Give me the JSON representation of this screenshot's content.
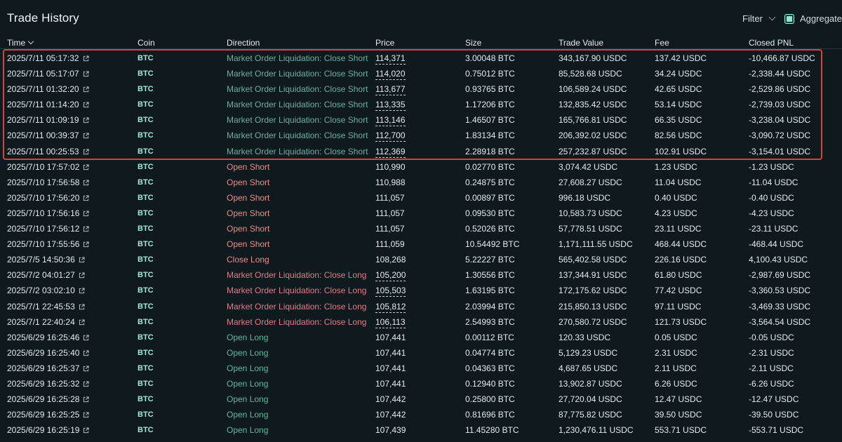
{
  "header": {
    "title": "Trade History",
    "filter_label": "Filter",
    "aggregate_label": "Aggregate"
  },
  "columns": [
    "Time",
    "Coin",
    "Direction",
    "Price",
    "Size",
    "Trade Value",
    "Fee",
    "Closed PNL"
  ],
  "rows": [
    {
      "time": "2025/7/11 05:17:32",
      "coin": "BTC",
      "direction": "Market Order Liquidation: Close Short",
      "kind": "liq-short",
      "price": "114,371",
      "underline": true,
      "size": "3.00048 BTC",
      "value": "343,167.90 USDC",
      "fee": "137.42 USDC",
      "pnl": "-10,466.87 USDC"
    },
    {
      "time": "2025/7/11 05:17:07",
      "coin": "BTC",
      "direction": "Market Order Liquidation: Close Short",
      "kind": "liq-short",
      "price": "114,020",
      "underline": true,
      "size": "0.75012 BTC",
      "value": "85,528.68 USDC",
      "fee": "34.24 USDC",
      "pnl": "-2,338.44 USDC"
    },
    {
      "time": "2025/7/11 01:32:20",
      "coin": "BTC",
      "direction": "Market Order Liquidation: Close Short",
      "kind": "liq-short",
      "price": "113,677",
      "underline": true,
      "size": "0.93765 BTC",
      "value": "106,589.24 USDC",
      "fee": "42.65 USDC",
      "pnl": "-2,529.86 USDC"
    },
    {
      "time": "2025/7/11 01:14:20",
      "coin": "BTC",
      "direction": "Market Order Liquidation: Close Short",
      "kind": "liq-short",
      "price": "113,335",
      "underline": true,
      "size": "1.17206 BTC",
      "value": "132,835.42 USDC",
      "fee": "53.14 USDC",
      "pnl": "-2,739.03 USDC"
    },
    {
      "time": "2025/7/11 01:09:19",
      "coin": "BTC",
      "direction": "Market Order Liquidation: Close Short",
      "kind": "liq-short",
      "price": "113,146",
      "underline": true,
      "size": "1.46507 BTC",
      "value": "165,766.81 USDC",
      "fee": "66.35 USDC",
      "pnl": "-3,238.04 USDC"
    },
    {
      "time": "2025/7/11 00:39:37",
      "coin": "BTC",
      "direction": "Market Order Liquidation: Close Short",
      "kind": "liq-short",
      "price": "112,700",
      "underline": true,
      "size": "1.83134 BTC",
      "value": "206,392.02 USDC",
      "fee": "82.56 USDC",
      "pnl": "-3,090.72 USDC"
    },
    {
      "time": "2025/7/11 00:25:53",
      "coin": "BTC",
      "direction": "Market Order Liquidation: Close Short",
      "kind": "liq-short",
      "price": "112,369",
      "underline": true,
      "size": "2.28918 BTC",
      "value": "257,232.87 USDC",
      "fee": "102.91 USDC",
      "pnl": "-3,154.01 USDC"
    },
    {
      "time": "2025/7/10 17:57:02",
      "coin": "BTC",
      "direction": "Open Short",
      "kind": "short",
      "price": "110,990",
      "underline": false,
      "size": "0.02770 BTC",
      "value": "3,074.42 USDC",
      "fee": "1.23 USDC",
      "pnl": "-1.23 USDC"
    },
    {
      "time": "2025/7/10 17:56:58",
      "coin": "BTC",
      "direction": "Open Short",
      "kind": "short",
      "price": "110,988",
      "underline": false,
      "size": "0.24875 BTC",
      "value": "27,608.27 USDC",
      "fee": "11.04 USDC",
      "pnl": "-11.04 USDC"
    },
    {
      "time": "2025/7/10 17:56:20",
      "coin": "BTC",
      "direction": "Open Short",
      "kind": "short",
      "price": "111,057",
      "underline": false,
      "size": "0.00897 BTC",
      "value": "996.18 USDC",
      "fee": "0.40 USDC",
      "pnl": "-0.40 USDC"
    },
    {
      "time": "2025/7/10 17:56:16",
      "coin": "BTC",
      "direction": "Open Short",
      "kind": "short",
      "price": "111,057",
      "underline": false,
      "size": "0.09530 BTC",
      "value": "10,583.73 USDC",
      "fee": "4.23 USDC",
      "pnl": "-4.23 USDC"
    },
    {
      "time": "2025/7/10 17:56:12",
      "coin": "BTC",
      "direction": "Open Short",
      "kind": "short",
      "price": "111,057",
      "underline": false,
      "size": "0.52026 BTC",
      "value": "57,778.51 USDC",
      "fee": "23.11 USDC",
      "pnl": "-23.11 USDC"
    },
    {
      "time": "2025/7/10 17:55:56",
      "coin": "BTC",
      "direction": "Open Short",
      "kind": "short",
      "price": "111,059",
      "underline": false,
      "size": "10.54492 BTC",
      "value": "1,171,111.55 USDC",
      "fee": "468.44 USDC",
      "pnl": "-468.44 USDC"
    },
    {
      "time": "2025/7/5 14:50:36",
      "coin": "BTC",
      "direction": "Close Long",
      "kind": "short",
      "price": "108,268",
      "underline": false,
      "size": "5.22227 BTC",
      "value": "565,402.58 USDC",
      "fee": "226.16 USDC",
      "pnl": "4,100.43 USDC"
    },
    {
      "time": "2025/7/2 04:01:27",
      "coin": "BTC",
      "direction": "Market Order Liquidation: Close Long",
      "kind": "liq-long",
      "price": "105,200",
      "underline": true,
      "size": "1.30556 BTC",
      "value": "137,344.91 USDC",
      "fee": "61.80 USDC",
      "pnl": "-2,987.69 USDC"
    },
    {
      "time": "2025/7/2 03:02:10",
      "coin": "BTC",
      "direction": "Market Order Liquidation: Close Long",
      "kind": "liq-long",
      "price": "105,503",
      "underline": true,
      "size": "1.63195 BTC",
      "value": "172,175.62 USDC",
      "fee": "77.42 USDC",
      "pnl": "-3,360.53 USDC"
    },
    {
      "time": "2025/7/1 22:45:53",
      "coin": "BTC",
      "direction": "Market Order Liquidation: Close Long",
      "kind": "liq-long",
      "price": "105,812",
      "underline": true,
      "size": "2.03994 BTC",
      "value": "215,850.13 USDC",
      "fee": "97.11 USDC",
      "pnl": "-3,469.33 USDC"
    },
    {
      "time": "2025/7/1 22:40:24",
      "coin": "BTC",
      "direction": "Market Order Liquidation: Close Long",
      "kind": "liq-long",
      "price": "106,113",
      "underline": true,
      "size": "2.54993 BTC",
      "value": "270,580.72 USDC",
      "fee": "121.73 USDC",
      "pnl": "-3,564.54 USDC"
    },
    {
      "time": "2025/6/29 16:25:46",
      "coin": "BTC",
      "direction": "Open Long",
      "kind": "long",
      "price": "107,441",
      "underline": false,
      "size": "0.00112 BTC",
      "value": "120.33 USDC",
      "fee": "0.05 USDC",
      "pnl": "-0.05 USDC"
    },
    {
      "time": "2025/6/29 16:25:40",
      "coin": "BTC",
      "direction": "Open Long",
      "kind": "long",
      "price": "107,441",
      "underline": false,
      "size": "0.04774 BTC",
      "value": "5,129.23 USDC",
      "fee": "2.31 USDC",
      "pnl": "-2.31 USDC"
    },
    {
      "time": "2025/6/29 16:25:37",
      "coin": "BTC",
      "direction": "Open Long",
      "kind": "long",
      "price": "107,441",
      "underline": false,
      "size": "0.04363 BTC",
      "value": "4,687.65 USDC",
      "fee": "2.11 USDC",
      "pnl": "-2.11 USDC"
    },
    {
      "time": "2025/6/29 16:25:32",
      "coin": "BTC",
      "direction": "Open Long",
      "kind": "long",
      "price": "107,441",
      "underline": false,
      "size": "0.12940 BTC",
      "value": "13,902.87 USDC",
      "fee": "6.26 USDC",
      "pnl": "-6.26 USDC"
    },
    {
      "time": "2025/6/29 16:25:28",
      "coin": "BTC",
      "direction": "Open Long",
      "kind": "long",
      "price": "107,442",
      "underline": false,
      "size": "0.25800 BTC",
      "value": "27,720.04 USDC",
      "fee": "12.47 USDC",
      "pnl": "-12.47 USDC"
    },
    {
      "time": "2025/6/29 16:25:25",
      "coin": "BTC",
      "direction": "Open Long",
      "kind": "long",
      "price": "107,442",
      "underline": false,
      "size": "0.81696 BTC",
      "value": "87,775.82 USDC",
      "fee": "39.50 USDC",
      "pnl": "-39.50 USDC"
    },
    {
      "time": "2025/6/29 16:25:19",
      "coin": "BTC",
      "direction": "Open Long",
      "kind": "long",
      "price": "107,439",
      "underline": false,
      "size": "11.45280 BTC",
      "value": "1,230,476.11 USDC",
      "fee": "553.71 USDC",
      "pnl": "-553.71 USDC"
    }
  ],
  "colors": {
    "background": "#0f1a1f",
    "coin": "#9ee9d6",
    "short": "#ec8b8b",
    "long": "#62b79d",
    "highlight": "#d9413a",
    "checkbox": "#97fce4"
  },
  "icons": {
    "row_link": "external-link-icon",
    "filter": "chevron-down-icon",
    "sort": "chevron-down-icon"
  }
}
